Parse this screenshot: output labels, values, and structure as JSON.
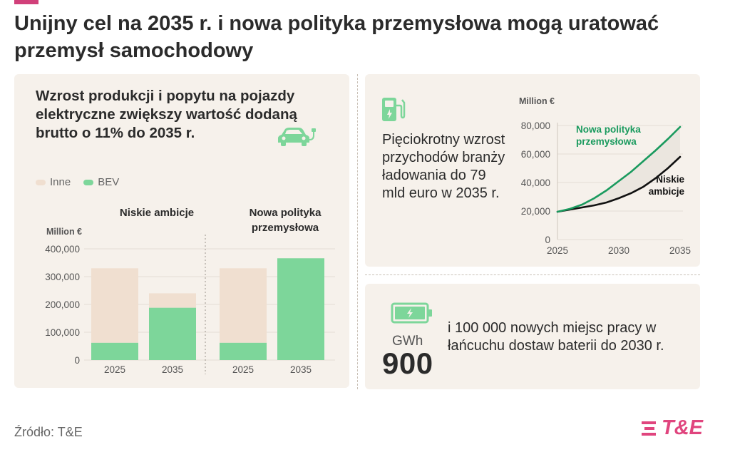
{
  "title": "Unijny cel na 2035 r. i nowa polityka przemysłowa mogą uratować przemysł samochodowy",
  "colors": {
    "accent": "#d1407a",
    "panel_bg": "#f6f1eb",
    "bev": "#7dd69a",
    "inne": "#f0dfd0",
    "line_green": "#1a9a5e",
    "line_black": "#111111",
    "logo": "#e0457e"
  },
  "left_panel": {
    "heading": "Wzrost produkcji i popytu na pojazdy elektryczne zwiększy wartość dodaną brutto o 11% do 2035 r.",
    "icon": "electric-car-icon",
    "legend": [
      {
        "label": "Inne",
        "color": "#f0dfd0"
      },
      {
        "label": "BEV",
        "color": "#7dd69a"
      }
    ]
  },
  "right_top_panel": {
    "icon": "charging-station-icon",
    "text": "Pięciokrotny wzrost przychodów branży ładowania do 79 mld euro w 2035 r."
  },
  "right_bottom_panel": {
    "icon": "battery-icon",
    "unit": "GWh",
    "value": "900",
    "text": "i 100 000 nowych miejsc pracy w łańcuchu dostaw baterii do 2030 r."
  },
  "source": "Źródło: T&E",
  "logo": "T&E",
  "chart_data": [
    {
      "type": "bar",
      "ylabel": "Million €",
      "ylim": [
        0,
        400000
      ],
      "yticks": [
        0,
        100000,
        200000,
        300000,
        400000
      ],
      "ytick_labels": [
        "0",
        "100,000",
        "200,000",
        "300,000",
        "400,000"
      ],
      "stacked": true,
      "groups": [
        {
          "title": "Niskie ambicje",
          "categories": [
            "2025",
            "2035"
          ],
          "bev": [
            62000,
            188000
          ],
          "inne": [
            268000,
            52000
          ]
        },
        {
          "title": "Nowa polityka przemysłowa",
          "categories": [
            "2025",
            "2035"
          ],
          "bev": [
            62000,
            366000
          ],
          "inne": [
            268000,
            0
          ]
        }
      ],
      "series": [
        {
          "name": "Inne",
          "color": "#f0dfd0"
        },
        {
          "name": "BEV",
          "color": "#7dd69a"
        }
      ],
      "grid": true,
      "legend_position": "top-left"
    },
    {
      "type": "line",
      "ylabel": "Million €",
      "ylim": [
        0,
        80000
      ],
      "yticks": [
        0,
        20000,
        40000,
        60000,
        80000
      ],
      "ytick_labels": [
        "0",
        "20,000",
        "40,000",
        "60,000",
        "80,000"
      ],
      "xlim": [
        2025,
        2035
      ],
      "xticks": [
        "2025",
        "2030",
        "2035"
      ],
      "x": [
        2025,
        2026,
        2027,
        2028,
        2029,
        2030,
        2031,
        2032,
        2033,
        2034,
        2035
      ],
      "series": [
        {
          "name": "Nowa polityka przemysłowa",
          "color": "#1a9a5e",
          "values": [
            19500,
            21500,
            24500,
            29000,
            34500,
            41000,
            47500,
            55000,
            62500,
            70500,
            79000
          ]
        },
        {
          "name": "Niskie ambicje",
          "color": "#111111",
          "values": [
            19500,
            21000,
            22500,
            24000,
            26000,
            29000,
            32500,
            37000,
            43000,
            50000,
            58000
          ]
        }
      ],
      "grid": true,
      "fill_between": true
    }
  ]
}
